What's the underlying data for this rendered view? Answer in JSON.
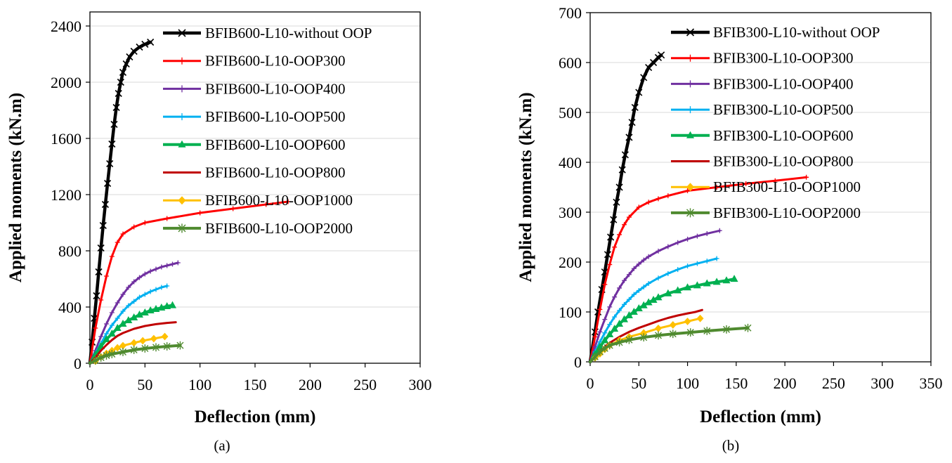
{
  "chart_data": [
    {
      "type": "line",
      "panel_label": "(a)",
      "xlabel": "Deflection (mm)",
      "ylabel": "Applied moments (kN.m)",
      "xlim": [
        0,
        300
      ],
      "ylim": [
        0,
        2500
      ],
      "xticks": [
        0,
        50,
        100,
        150,
        200,
        250,
        300
      ],
      "yticks": [
        0,
        400,
        800,
        1200,
        1600,
        2000,
        2400
      ],
      "grid": "horizontal",
      "legend_position": "top-right",
      "series": [
        {
          "name": "BFIB600-L10-without OOP",
          "color": "#000000",
          "marker": "x",
          "width": 4.5,
          "x": [
            0,
            2,
            4,
            6,
            8,
            10,
            12,
            14,
            16,
            18,
            20,
            22,
            24,
            26,
            28,
            30,
            33,
            36,
            40,
            45,
            50,
            55
          ],
          "y": [
            0,
            150,
            320,
            480,
            650,
            820,
            980,
            1130,
            1280,
            1420,
            1560,
            1700,
            1820,
            1920,
            2000,
            2070,
            2130,
            2180,
            2220,
            2250,
            2270,
            2285
          ]
        },
        {
          "name": "BFIB600-L10-OOP300",
          "color": "#ff0000",
          "marker": "+",
          "width": 3,
          "x": [
            0,
            5,
            10,
            15,
            20,
            25,
            30,
            40,
            50,
            70,
            100,
            130,
            160,
            180
          ],
          "y": [
            0,
            250,
            450,
            620,
            760,
            860,
            920,
            970,
            1000,
            1030,
            1070,
            1100,
            1130,
            1150
          ]
        },
        {
          "name": "BFIB600-L10-OOP400",
          "color": "#7030a0",
          "marker": "+",
          "width": 3,
          "x": [
            0,
            5,
            10,
            15,
            20,
            25,
            30,
            35,
            40,
            45,
            50,
            55,
            60,
            65,
            70,
            75,
            80
          ],
          "y": [
            0,
            90,
            190,
            280,
            360,
            430,
            490,
            540,
            580,
            610,
            635,
            655,
            670,
            685,
            695,
            705,
            715
          ]
        },
        {
          "name": "BFIB600-L10-OOP500",
          "color": "#00b0f0",
          "marker": "+",
          "width": 3,
          "x": [
            0,
            5,
            10,
            15,
            20,
            25,
            30,
            35,
            40,
            45,
            50,
            55,
            60,
            65,
            70
          ],
          "y": [
            0,
            70,
            140,
            210,
            270,
            320,
            370,
            410,
            440,
            470,
            490,
            510,
            525,
            540,
            550
          ]
        },
        {
          "name": "BFIB600-L10-OOP600",
          "color": "#00b050",
          "marker": "triangle",
          "width": 4,
          "x": [
            0,
            5,
            10,
            15,
            20,
            25,
            30,
            35,
            40,
            45,
            50,
            55,
            60,
            65,
            70,
            75
          ],
          "y": [
            0,
            60,
            120,
            170,
            210,
            250,
            280,
            305,
            325,
            345,
            360,
            375,
            385,
            395,
            405,
            412
          ]
        },
        {
          "name": "BFIB600-L10-OOP800",
          "color": "#c00000",
          "marker": "none",
          "width": 3,
          "x": [
            0,
            5,
            10,
            15,
            20,
            25,
            30,
            40,
            50,
            60,
            70,
            78
          ],
          "y": [
            0,
            40,
            90,
            130,
            165,
            195,
            215,
            245,
            265,
            278,
            287,
            292
          ]
        },
        {
          "name": "BFIB600-L10-OOP1000",
          "color": "#ffc000",
          "marker": "diamond",
          "width": 3,
          "x": [
            0,
            5,
            10,
            15,
            20,
            25,
            30,
            40,
            48,
            58,
            68
          ],
          "y": [
            0,
            15,
            45,
            70,
            90,
            110,
            125,
            145,
            160,
            175,
            190
          ]
        },
        {
          "name": "BFIB600-L10-OOP2000",
          "color": "#4f8a2f",
          "marker": "star",
          "width": 4,
          "x": [
            0,
            5,
            10,
            15,
            20,
            30,
            40,
            50,
            60,
            70,
            82
          ],
          "y": [
            0,
            20,
            40,
            55,
            65,
            80,
            95,
            105,
            113,
            120,
            127
          ]
        }
      ]
    },
    {
      "type": "line",
      "panel_label": "(b)",
      "xlabel": "Deflection (mm)",
      "ylabel": "Applied moments (kN.m)",
      "xlim": [
        0,
        350
      ],
      "ylim": [
        0,
        700
      ],
      "xticks": [
        0,
        50,
        100,
        150,
        200,
        250,
        300,
        350
      ],
      "yticks": [
        0,
        100,
        200,
        300,
        400,
        500,
        600,
        700
      ],
      "grid": "horizontal",
      "legend_position": "top-right",
      "series": [
        {
          "name": "BFIB300-L10-without OOP",
          "color": "#000000",
          "marker": "x",
          "width": 4.5,
          "x": [
            0,
            5,
            8,
            12,
            15,
            18,
            21,
            24,
            27,
            30,
            33,
            36,
            40,
            43,
            46,
            50,
            55,
            60,
            65,
            70,
            73
          ],
          "y": [
            0,
            60,
            100,
            145,
            180,
            215,
            250,
            285,
            320,
            350,
            385,
            415,
            450,
            480,
            510,
            540,
            570,
            590,
            600,
            610,
            615
          ]
        },
        {
          "name": "BFIB300-L10-OOP300",
          "color": "#ff0000",
          "marker": "+",
          "width": 3,
          "x": [
            0,
            5,
            10,
            15,
            20,
            25,
            30,
            35,
            40,
            50,
            60,
            70,
            80,
            100,
            130,
            160,
            190,
            222
          ],
          "y": [
            0,
            50,
            105,
            155,
            195,
            230,
            255,
            275,
            290,
            310,
            320,
            327,
            333,
            343,
            350,
            357,
            363,
            370
          ]
        },
        {
          "name": "BFIB300-L10-OOP400",
          "color": "#7030a0",
          "marker": "+",
          "width": 3,
          "x": [
            0,
            5,
            10,
            15,
            20,
            25,
            30,
            35,
            40,
            45,
            50,
            55,
            60,
            70,
            80,
            90,
            100,
            110,
            120,
            133
          ],
          "y": [
            0,
            30,
            60,
            85,
            110,
            130,
            148,
            163,
            175,
            187,
            196,
            204,
            211,
            222,
            231,
            239,
            246,
            252,
            257,
            263
          ]
        },
        {
          "name": "BFIB300-L10-OOP500",
          "color": "#00b0f0",
          "marker": "+",
          "width": 3,
          "x": [
            0,
            5,
            10,
            15,
            20,
            25,
            30,
            35,
            40,
            45,
            50,
            55,
            60,
            70,
            80,
            90,
            100,
            110,
            120,
            130
          ],
          "y": [
            0,
            20,
            40,
            58,
            75,
            90,
            103,
            115,
            125,
            135,
            143,
            150,
            157,
            168,
            177,
            185,
            192,
            197,
            202,
            207
          ]
        },
        {
          "name": "BFIB300-L10-OOP600",
          "color": "#00b050",
          "marker": "triangle",
          "width": 4,
          "x": [
            0,
            5,
            10,
            15,
            20,
            25,
            30,
            35,
            40,
            45,
            50,
            55,
            60,
            65,
            70,
            80,
            90,
            100,
            110,
            120,
            130,
            140,
            148
          ],
          "y": [
            0,
            15,
            30,
            43,
            55,
            66,
            76,
            85,
            93,
            100,
            107,
            113,
            119,
            124,
            129,
            137,
            143,
            149,
            153,
            157,
            160,
            163,
            166
          ]
        },
        {
          "name": "BFIB300-L10-OOP800",
          "color": "#c00000",
          "marker": "none",
          "width": 3,
          "x": [
            0,
            5,
            10,
            15,
            20,
            30,
            40,
            50,
            60,
            70,
            80,
            90,
            100,
            108,
            115
          ],
          "y": [
            0,
            10,
            20,
            30,
            38,
            50,
            60,
            68,
            75,
            82,
            88,
            93,
            97,
            100,
            104
          ]
        },
        {
          "name": "BFIB300-L10-OOP1000",
          "color": "#ffc000",
          "marker": "diamond",
          "width": 3,
          "x": [
            0,
            5,
            10,
            15,
            20,
            30,
            40,
            55,
            70,
            85,
            100,
            113
          ],
          "y": [
            0,
            8,
            16,
            25,
            33,
            43,
            50,
            58,
            67,
            74,
            81,
            87
          ]
        },
        {
          "name": "BFIB300-L10-OOP2000",
          "color": "#4f8a2f",
          "marker": "star",
          "width": 4,
          "x": [
            0,
            5,
            10,
            15,
            20,
            30,
            40,
            55,
            70,
            85,
            103,
            120,
            140,
            162
          ],
          "y": [
            0,
            10,
            20,
            27,
            33,
            39,
            44,
            49,
            53,
            56,
            59,
            62,
            65,
            68
          ]
        }
      ]
    }
  ]
}
